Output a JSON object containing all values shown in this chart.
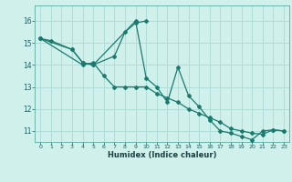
{
  "xlabel": "Humidex (Indice chaleur)",
  "bg_color": "#cff0eb",
  "grid_color": "#b0ddd8",
  "line_color": "#1a7a6e",
  "marker_color": "#1a7a6e",
  "xlim": [
    -0.5,
    23.5
  ],
  "ylim": [
    10.5,
    16.7
  ],
  "yticks": [
    11,
    12,
    13,
    14,
    15,
    16
  ],
  "xticks": [
    0,
    1,
    2,
    3,
    4,
    5,
    6,
    7,
    8,
    9,
    10,
    11,
    12,
    13,
    14,
    15,
    16,
    17,
    18,
    19,
    20,
    21,
    22,
    23
  ],
  "series1_x": [
    0,
    1,
    3,
    4,
    5,
    7,
    8,
    9,
    10
  ],
  "series1_y": [
    15.2,
    15.1,
    14.7,
    14.1,
    14.0,
    14.4,
    15.5,
    15.9,
    16.0
  ],
  "series2_x": [
    0,
    3,
    4,
    5,
    9,
    10,
    11,
    12,
    13,
    14,
    15,
    16,
    17,
    18,
    19,
    20,
    21,
    22,
    23
  ],
  "series2_y": [
    15.2,
    14.7,
    14.1,
    14.0,
    16.0,
    13.4,
    13.0,
    12.3,
    13.9,
    12.6,
    12.1,
    11.5,
    11.0,
    10.9,
    10.75,
    10.6,
    11.0,
    11.05,
    11.0
  ],
  "series3_x": [
    0,
    4,
    5,
    6,
    7,
    8,
    9,
    10,
    11,
    12,
    13,
    14,
    15,
    16,
    17,
    18,
    19,
    20,
    21,
    22,
    23
  ],
  "series3_y": [
    15.2,
    14.0,
    14.1,
    13.5,
    13.0,
    13.0,
    13.0,
    13.0,
    12.7,
    12.5,
    12.3,
    12.0,
    11.8,
    11.6,
    11.4,
    11.1,
    11.0,
    10.9,
    10.85,
    11.05,
    11.0
  ]
}
